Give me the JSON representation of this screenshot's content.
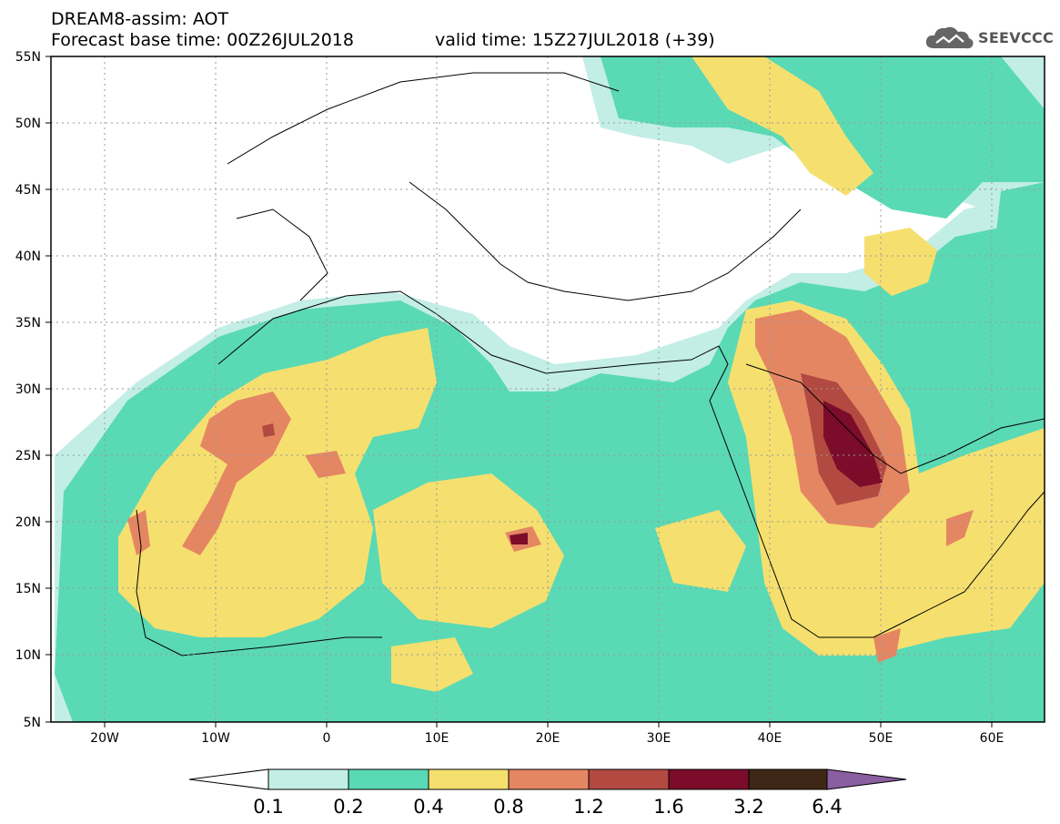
{
  "header": {
    "title": "DREAM8-assim: AOT",
    "base_time": "Forecast base time: 00Z26JUL2018",
    "valid_time": "valid time: 15Z27JUL2018 (+39)",
    "logo_text": "SEEVCCC"
  },
  "map": {
    "lat_labels": [
      "55N",
      "50N",
      "45N",
      "40N",
      "35N",
      "30N",
      "25N",
      "20N",
      "15N",
      "10N",
      "5N"
    ],
    "lon_labels": [
      "20W",
      "10W",
      "0",
      "10E",
      "20E",
      "30E",
      "40E",
      "50E",
      "60E"
    ],
    "extent": {
      "lon_min": -25,
      "lon_max": 65,
      "lat_min": 5,
      "lat_max": 55
    },
    "grid": "dotted"
  },
  "colorbar": {
    "labels": [
      "0.1",
      "0.2",
      "0.4",
      "0.8",
      "1.2",
      "1.6",
      "3.2",
      "6.4"
    ],
    "colors": [
      "#ffffff",
      "#c2eee6",
      "#5ad9b5",
      "#f5e06f",
      "#e58663",
      "#b24a41",
      "#7b0d2b",
      "#3e2716",
      "#8a5ea0"
    ]
  }
}
